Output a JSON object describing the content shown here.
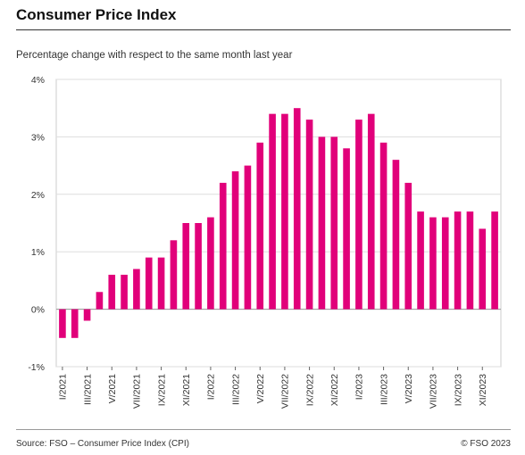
{
  "header": {
    "title": "Consumer Price Index",
    "subtitle": "Percentage change with respect to the same month last year"
  },
  "footer": {
    "source": "Source: FSO – Consumer Price Index (CPI)",
    "copyright": "© FSO 2023"
  },
  "colors": {
    "bar": "#e1007a",
    "grid": "#dddddd",
    "axis": "#333333",
    "plot_border": "#cccccc"
  },
  "chart_data": {
    "type": "bar",
    "title": "Consumer Price Index",
    "subtitle": "Percentage change with respect to the same month last year",
    "xlabel": "",
    "ylabel": "",
    "ylim": [
      -1,
      4
    ],
    "yticks": [
      -1,
      0,
      1,
      2,
      3,
      4
    ],
    "ytick_labels": [
      "-1%",
      "0%",
      "1%",
      "2%",
      "3%",
      "4%"
    ],
    "grid": true,
    "categories": [
      "I/2021",
      "II/2021",
      "III/2021",
      "IV/2021",
      "V/2021",
      "VI/2021",
      "VII/2021",
      "VIII/2021",
      "IX/2021",
      "X/2021",
      "XI/2021",
      "XII/2021",
      "I/2022",
      "II/2022",
      "III/2022",
      "IV/2022",
      "V/2022",
      "VI/2022",
      "VII/2022",
      "VIII/2022",
      "IX/2022",
      "X/2022",
      "XI/2022",
      "XII/2022",
      "I/2023",
      "II/2023",
      "III/2023",
      "IV/2023",
      "V/2023",
      "VI/2023",
      "VII/2023",
      "VIII/2023",
      "IX/2023",
      "X/2023",
      "XI/2023",
      "XII/2023"
    ],
    "tick_labels": [
      "I/2021",
      "III/2021",
      "V/2021",
      "VII/2021",
      "IX/2021",
      "XI/2021",
      "I/2022",
      "III/2022",
      "V/2022",
      "VII/2022",
      "IX/2022",
      "XI/2022",
      "I/2023",
      "III/2023",
      "V/2023",
      "VII/2023",
      "IX/2023",
      "XI/2023"
    ],
    "values": [
      -0.5,
      -0.5,
      -0.2,
      0.3,
      0.6,
      0.6,
      0.7,
      0.9,
      0.9,
      1.2,
      1.5,
      1.5,
      1.6,
      2.2,
      2.4,
      2.5,
      2.9,
      3.4,
      3.4,
      3.5,
      3.3,
      3.0,
      3.0,
      2.8,
      3.3,
      3.4,
      2.9,
      2.6,
      2.2,
      1.7,
      1.6,
      1.6,
      1.7,
      1.7,
      1.4,
      1.7
    ]
  }
}
